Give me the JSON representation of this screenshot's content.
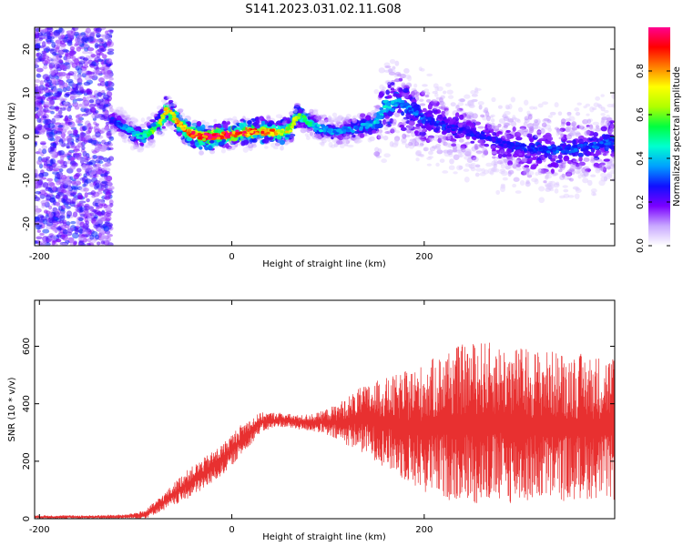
{
  "title": "S141.2023.031.02.11.G08",
  "colors": {
    "snr_line": "#e83030",
    "spectrogram_low": "#6a00ff",
    "colormap": [
      "#ffffff",
      "#c8a8ff",
      "#7a00ff",
      "#1010ff",
      "#00a0ff",
      "#00ffd0",
      "#00ff40",
      "#b0ff00",
      "#ffff00",
      "#ff8000",
      "#ff0000",
      "#ff0090"
    ]
  },
  "chart_data": [
    {
      "type": "heatmap",
      "xlabel": "Height of straight line (km)",
      "ylabel": "Frequency (Hz)",
      "xlim": [
        -205,
        398
      ],
      "ylim": [
        -25,
        25
      ],
      "xticks": [
        -200,
        0,
        200
      ],
      "yticks": [
        -20,
        -10,
        0,
        10,
        20
      ],
      "colorbar": {
        "label": "Normalized spectral amplitude",
        "range": [
          0.0,
          1.0
        ],
        "ticks": [
          "0.0",
          "0.2",
          "0.4",
          "0.6",
          "0.8"
        ],
        "tick_values": [
          0.0,
          0.2,
          0.4,
          0.6,
          0.8
        ]
      },
      "ridge": {
        "x": [
          -125,
          -110,
          -95,
          -85,
          -75,
          -68,
          -62,
          -55,
          -45,
          -35,
          -20,
          0,
          20,
          40,
          55,
          62,
          68,
          75,
          90,
          110,
          130,
          150,
          160,
          175,
          200,
          230,
          260,
          290,
          320,
          350,
          380,
          398
        ],
        "y": [
          4,
          2,
          0,
          1,
          3,
          6,
          5,
          3,
          1,
          0,
          0,
          0.5,
          1,
          1,
          1,
          2,
          5,
          4,
          2,
          1,
          2,
          3,
          7,
          8,
          4,
          2,
          0,
          -2,
          -3,
          -3,
          -2,
          -1
        ],
        "amplitude": [
          0.25,
          0.35,
          0.45,
          0.55,
          0.6,
          0.75,
          0.7,
          0.8,
          0.85,
          0.9,
          0.95,
          0.9,
          0.85,
          0.8,
          0.7,
          0.65,
          0.6,
          0.5,
          0.4,
          0.35,
          0.35,
          0.4,
          0.4,
          0.35,
          0.3,
          0.25,
          0.25,
          0.25,
          0.3,
          0.3,
          0.3,
          0.3
        ]
      }
    },
    {
      "type": "line",
      "xlabel": "Height of straight line (km)",
      "ylabel": "SNR (10 * v/v)",
      "xlim": [
        -205,
        398
      ],
      "ylim": [
        0,
        760
      ],
      "xticks": [
        -200,
        0,
        200
      ],
      "yticks": [
        0,
        200,
        400,
        600
      ],
      "envelope": {
        "x": [
          -205,
          -150,
          -110,
          -90,
          -70,
          -50,
          -30,
          -10,
          10,
          30,
          50,
          70,
          90,
          110,
          130,
          150,
          170,
          200,
          230,
          260,
          290,
          320,
          350,
          380,
          398
        ],
        "low": [
          0,
          0,
          0,
          0,
          30,
          60,
          100,
          150,
          220,
          300,
          320,
          310,
          300,
          270,
          240,
          200,
          150,
          90,
          60,
          50,
          50,
          60,
          60,
          70,
          60
        ],
        "high": [
          12,
          12,
          15,
          30,
          90,
          160,
          210,
          260,
          330,
          370,
          370,
          360,
          370,
          400,
          450,
          480,
          500,
          540,
          600,
          620,
          600,
          590,
          580,
          570,
          570
        ]
      }
    }
  ],
  "labels": {
    "top_xlabel": "Height of straight line (km)",
    "top_ylabel": "Frequency (Hz)",
    "bottom_xlabel": "Height of straight line (km)",
    "bottom_ylabel": "SNR (10 * v/v)",
    "colorbar_label": "Normalized spectral amplitude"
  }
}
